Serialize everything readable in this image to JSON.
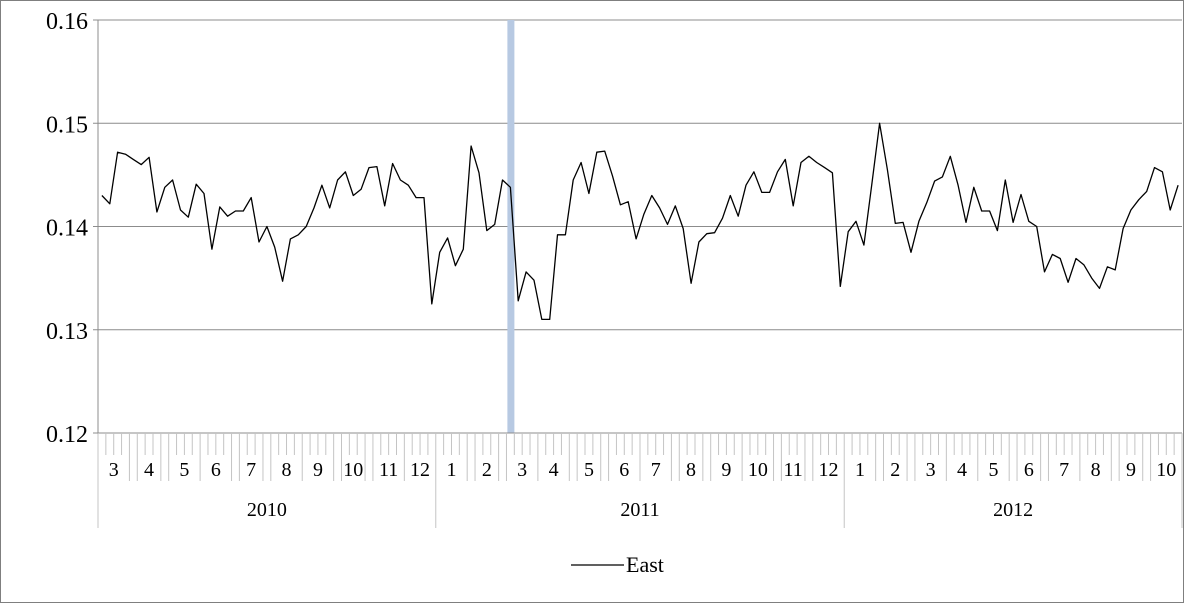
{
  "chart_data": {
    "type": "line",
    "title": "",
    "xlabel": "",
    "ylabel": "",
    "ylim": [
      0.12,
      0.16
    ],
    "y_ticks": [
      "0.12",
      "0.13",
      "0.14",
      "0.15",
      "0.16"
    ],
    "grid": true,
    "legend_position": "bottom",
    "highlight_line": {
      "year": "2011",
      "month": "3",
      "color": "#b7c9e2"
    },
    "month_labels": [
      {
        "label": "3",
        "year": "2010"
      },
      {
        "label": "4",
        "year": "2010"
      },
      {
        "label": "5",
        "year": "2010"
      },
      {
        "label": "6",
        "year": "2010"
      },
      {
        "label": "7",
        "year": "2010"
      },
      {
        "label": "8",
        "year": "2010"
      },
      {
        "label": "9",
        "year": "2010"
      },
      {
        "label": "10",
        "year": "2010"
      },
      {
        "label": "11",
        "year": "2010"
      },
      {
        "label": "12",
        "year": "2010"
      },
      {
        "label": "1",
        "year": "2011"
      },
      {
        "label": "2",
        "year": "2011"
      },
      {
        "label": "3",
        "year": "2011"
      },
      {
        "label": "4",
        "year": "2011"
      },
      {
        "label": "5",
        "year": "2011"
      },
      {
        "label": "6",
        "year": "2011"
      },
      {
        "label": "7",
        "year": "2011"
      },
      {
        "label": "8",
        "year": "2011"
      },
      {
        "label": "9",
        "year": "2011"
      },
      {
        "label": "10",
        "year": "2011"
      },
      {
        "label": "11",
        "year": "2011"
      },
      {
        "label": "12",
        "year": "2011"
      },
      {
        "label": "1",
        "year": "2012"
      },
      {
        "label": "2",
        "year": "2012"
      },
      {
        "label": "3",
        "year": "2012"
      },
      {
        "label": "4",
        "year": "2012"
      },
      {
        "label": "5",
        "year": "2012"
      },
      {
        "label": "6",
        "year": "2012"
      },
      {
        "label": "7",
        "year": "2012"
      },
      {
        "label": "8",
        "year": "2012"
      },
      {
        "label": "9",
        "year": "2012"
      },
      {
        "label": "10",
        "year": "2012"
      }
    ],
    "years": [
      "2010",
      "2011",
      "2012"
    ],
    "series": [
      {
        "name": "East",
        "color": "#000000",
        "values": [
          0.143,
          0.1422,
          0.1472,
          0.147,
          0.1465,
          0.146,
          0.1467,
          0.1414,
          0.1438,
          0.1445,
          0.1416,
          0.1409,
          0.1441,
          0.1432,
          0.1378,
          0.1419,
          0.141,
          0.1415,
          0.1415,
          0.1428,
          0.1385,
          0.14,
          0.138,
          0.1347,
          0.1388,
          0.1392,
          0.14,
          0.1418,
          0.144,
          0.1418,
          0.1445,
          0.1453,
          0.143,
          0.1436,
          0.1457,
          0.1458,
          0.142,
          0.1461,
          0.1445,
          0.144,
          0.1428,
          0.1428,
          0.1325,
          0.1375,
          0.1389,
          0.1362,
          0.1378,
          0.1478,
          0.1452,
          0.1396,
          0.1402,
          0.1445,
          0.1438,
          0.1328,
          0.1356,
          0.1348,
          0.131,
          0.131,
          0.1392,
          0.1392,
          0.1445,
          0.1462,
          0.1432,
          0.1472,
          0.1473,
          0.1449,
          0.1421,
          0.1424,
          0.1388,
          0.1412,
          0.143,
          0.1418,
          0.1402,
          0.142,
          0.1398,
          0.1345,
          0.1385,
          0.1393,
          0.1394,
          0.1408,
          0.143,
          0.141,
          0.144,
          0.1453,
          0.1433,
          0.1433,
          0.1453,
          0.1465,
          0.142,
          0.1462,
          0.1468,
          0.1462,
          0.1457,
          0.1452,
          0.1342,
          0.1395,
          0.1405,
          0.1382,
          0.144,
          0.15,
          0.1455,
          0.1403,
          0.1404,
          0.1375,
          0.1405,
          0.1423,
          0.1444,
          0.1448,
          0.1468,
          0.144,
          0.1404,
          0.1438,
          0.1415,
          0.1415,
          0.1396,
          0.1445,
          0.1404,
          0.1431,
          0.1405,
          0.14,
          0.1356,
          0.1373,
          0.1369,
          0.1346,
          0.1369,
          0.1363,
          0.135,
          0.134,
          0.1361,
          0.1358,
          0.1398,
          0.1416,
          0.1426,
          0.1434,
          0.1457,
          0.1453,
          0.1416,
          0.144
        ]
      }
    ]
  }
}
